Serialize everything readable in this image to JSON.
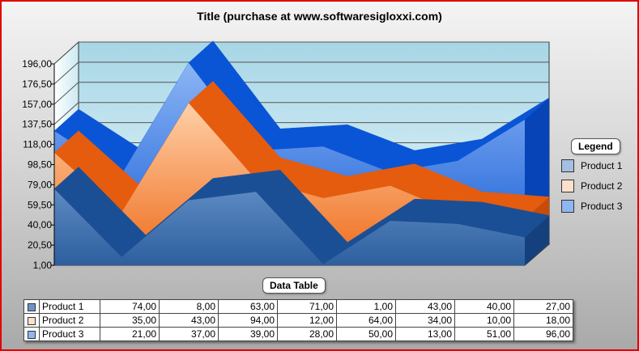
{
  "chart_data": {
    "type": "area",
    "title": "Title (purchase at www.softwaresigloxxi.com)",
    "y_ticks": [
      "1,00",
      "20,50",
      "40,00",
      "59,50",
      "79,00",
      "98,50",
      "118,00",
      "137,50",
      "157,00",
      "176,50",
      "196,00"
    ],
    "ylim": [
      1,
      196
    ],
    "grid": true,
    "stacked": true,
    "legend_title": "Legend",
    "legend_position": "right",
    "table_title": "Data Table",
    "series": [
      {
        "name": "Product 1",
        "values": [
          74,
          8,
          63,
          71,
          1,
          43,
          40,
          27
        ],
        "labels": [
          "74,00",
          "8,00",
          "63,00",
          "71,00",
          "1,00",
          "43,00",
          "40,00",
          "27,00"
        ],
        "color": "#4f7fbf"
      },
      {
        "name": "Product 2",
        "values": [
          35,
          43,
          94,
          12,
          64,
          34,
          10,
          18
        ],
        "labels": [
          "35,00",
          "43,00",
          "94,00",
          "12,00",
          "64,00",
          "34,00",
          "10,00",
          "18,00"
        ],
        "color": "#f07a2a"
      },
      {
        "name": "Product 3",
        "values": [
          21,
          37,
          39,
          28,
          50,
          13,
          51,
          96
        ],
        "labels": [
          "21,00",
          "37,00",
          "39,00",
          "28,00",
          "50,00",
          "13,00",
          "51,00",
          "96,00"
        ],
        "color": "#3c78e0"
      }
    ]
  }
}
